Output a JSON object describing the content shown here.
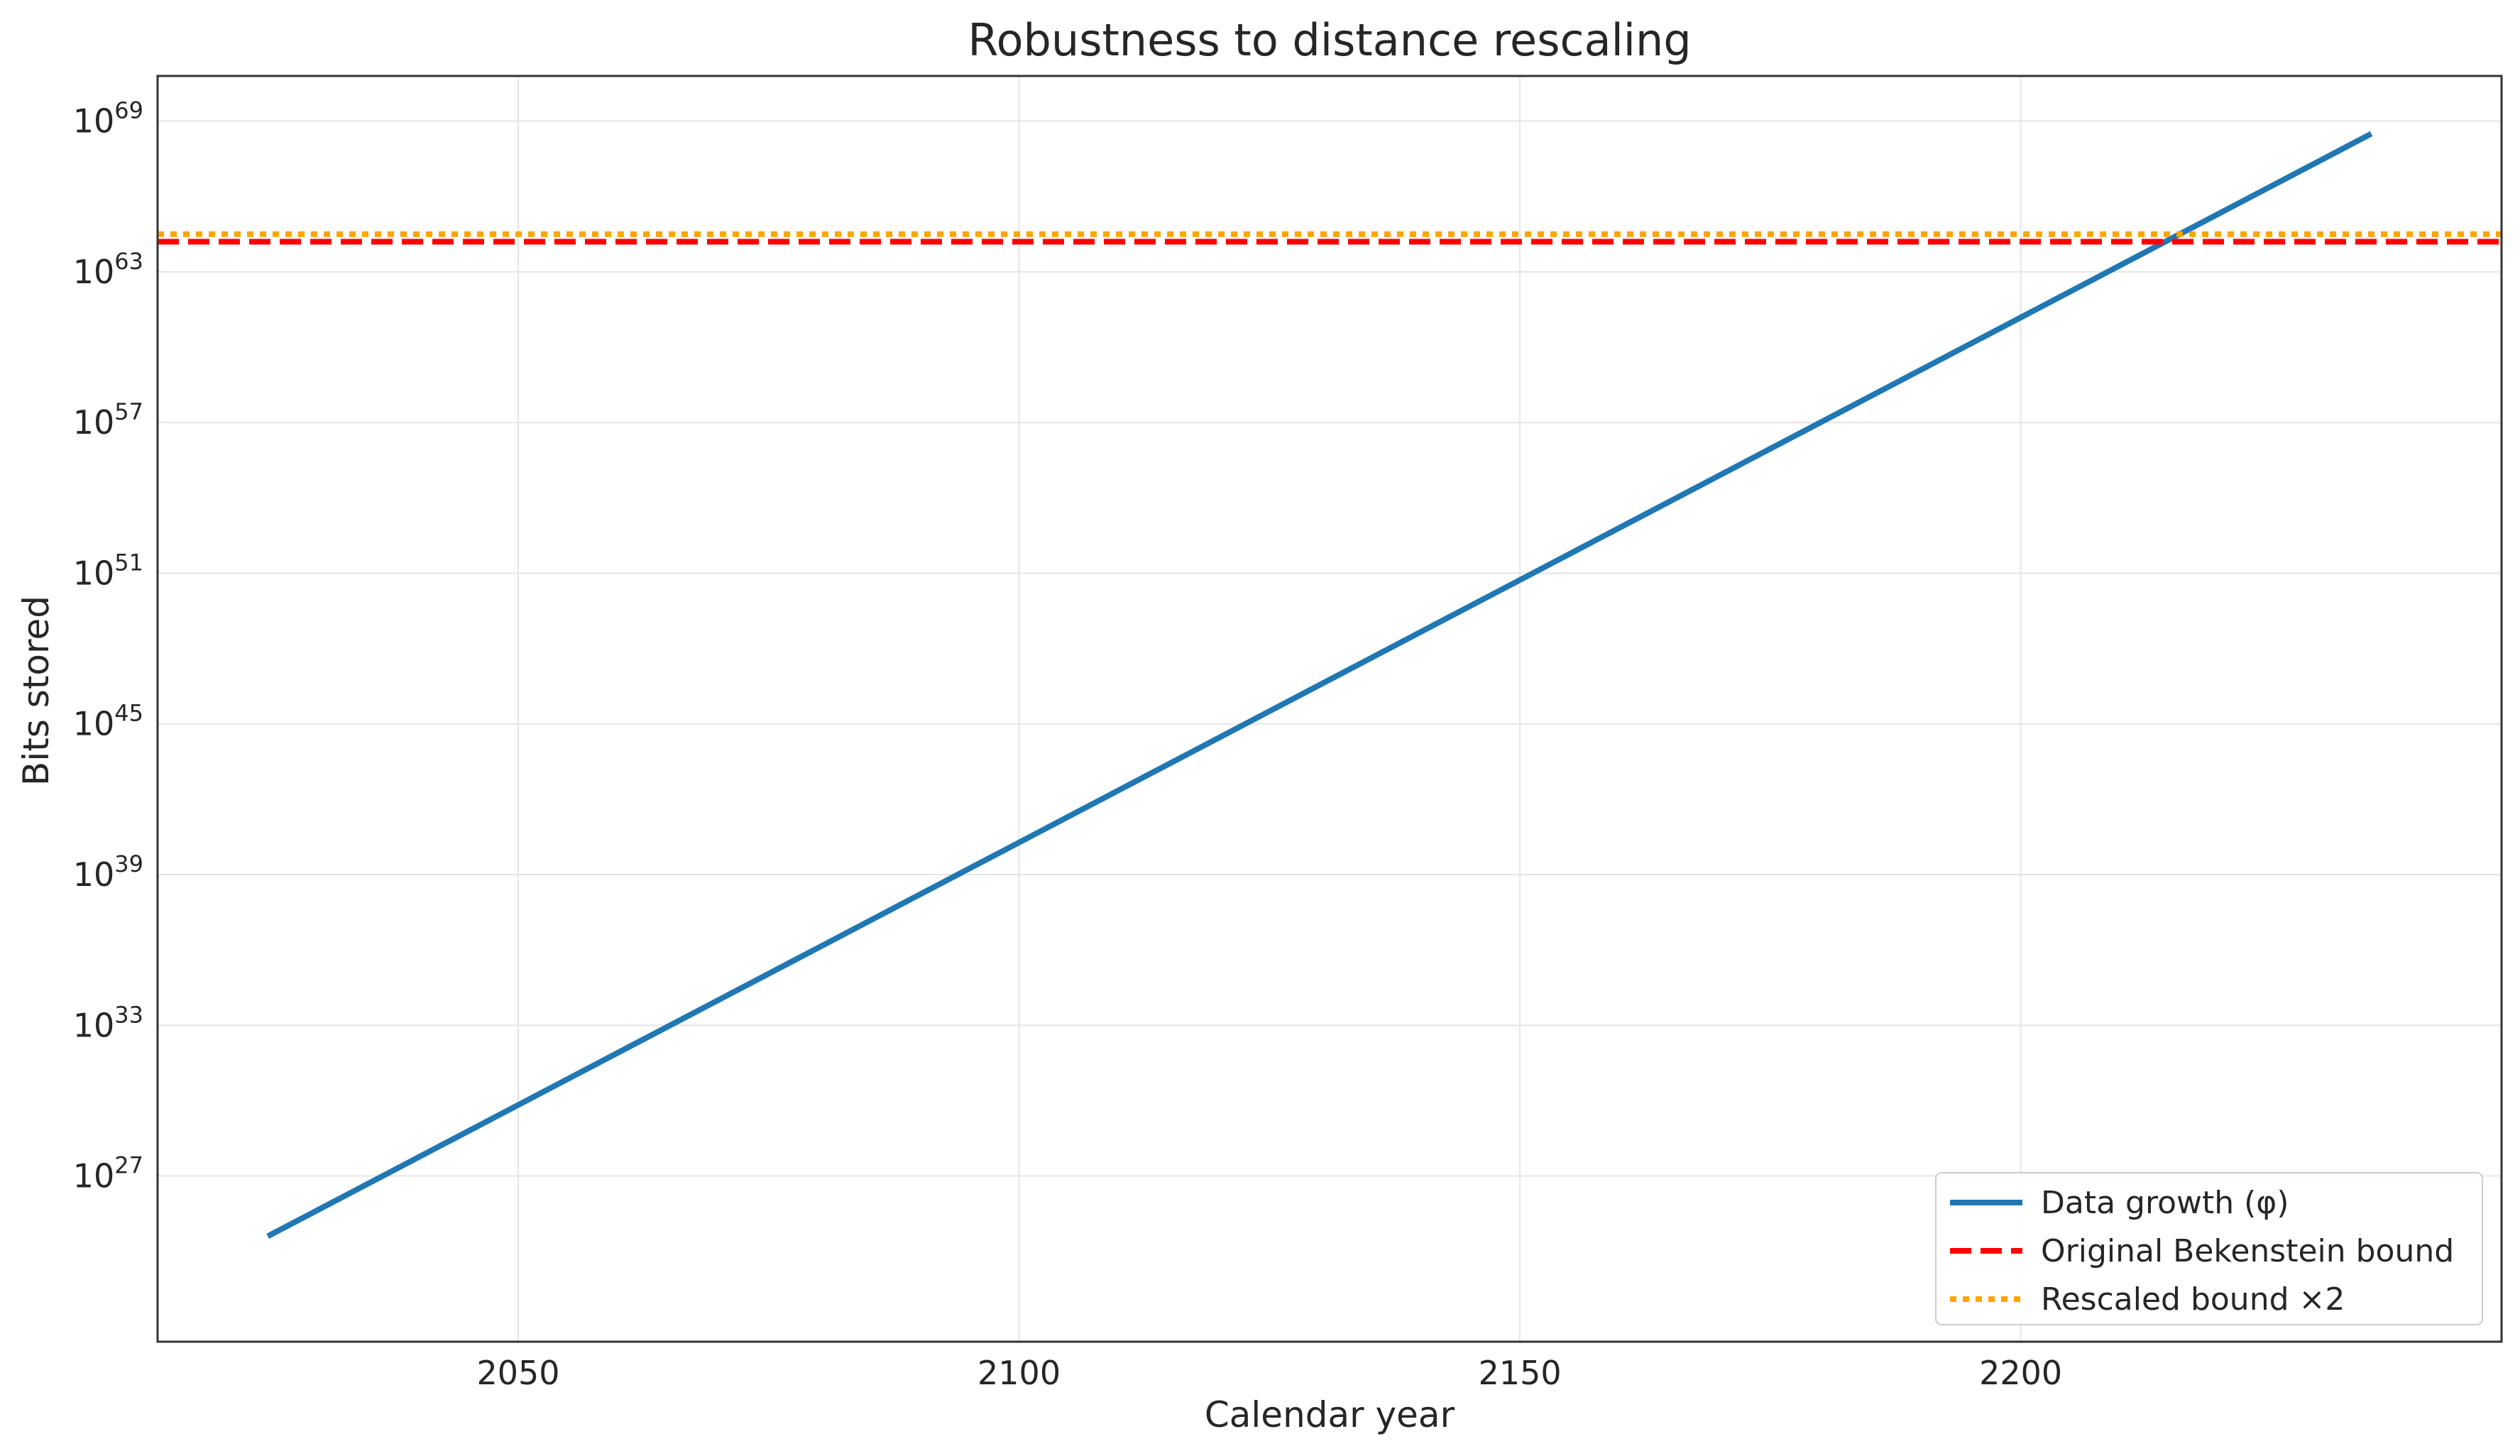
{
  "chart_data": {
    "type": "line",
    "title": "Robustness to distance rescaling",
    "xlabel": "Calendar year",
    "ylabel": "Bits stored",
    "xlim": [
      2014,
      2248
    ],
    "ylim_log10": [
      20.4,
      70.8
    ],
    "yscale": "log",
    "grid": true,
    "legend_position": "lower right",
    "x_ticks": [
      2050,
      2100,
      2150,
      2200
    ],
    "y_ticks": [
      {
        "base": "10",
        "exp": "27",
        "log10": 27
      },
      {
        "base": "10",
        "exp": "33",
        "log10": 33
      },
      {
        "base": "10",
        "exp": "39",
        "log10": 39
      },
      {
        "base": "10",
        "exp": "45",
        "log10": 45
      },
      {
        "base": "10",
        "exp": "51",
        "log10": 51
      },
      {
        "base": "10",
        "exp": "57",
        "log10": 57
      },
      {
        "base": "10",
        "exp": "63",
        "log10": 63
      },
      {
        "base": "10",
        "exp": "69",
        "log10": 69
      }
    ],
    "series": [
      {
        "name": "Data growth (φ)",
        "style": "solid",
        "color": "#1f77b4",
        "x": [
          2025,
          2235
        ],
        "log10_y": [
          24.6,
          68.5
        ]
      },
      {
        "name": "Original Bekenstein bound",
        "style": "dashed",
        "color": "#ff0000",
        "constant_log10_y": 64.2
      },
      {
        "name": "Rescaled bound ×2",
        "style": "dotted",
        "color": "#ffa500",
        "constant_log10_y": 64.5
      }
    ]
  }
}
